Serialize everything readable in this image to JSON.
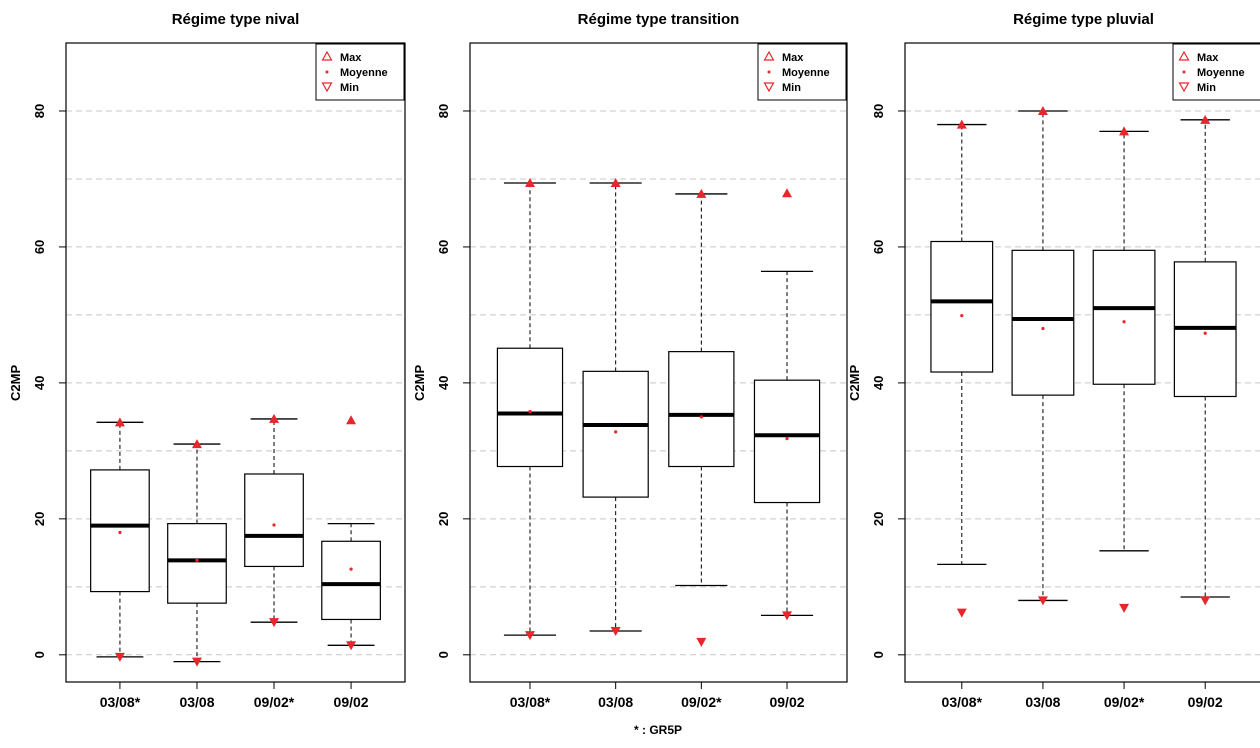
{
  "footnote": "* : GR5P",
  "colors": {
    "marker": "#e8262b",
    "grid": "#c8c8c8",
    "box": "#000000"
  },
  "chart_data": [
    {
      "type": "boxplot",
      "title": "Régime type nival",
      "ylabel": "C2MP",
      "ylim": [
        -4,
        90
      ],
      "yticks": [
        0,
        20,
        40,
        60,
        80
      ],
      "grid": {
        "y": [
          0,
          10,
          20,
          30,
          40,
          50,
          60,
          70,
          80
        ],
        "style": "dashed"
      },
      "legend": {
        "placement": "top-right",
        "entries": [
          "Max",
          "Moyenne",
          "Min"
        ]
      },
      "categories": [
        "03/08*",
        "03/08",
        "09/02*",
        "09/02"
      ],
      "boxes": [
        {
          "whisker_low": -0.3,
          "q1": 9.3,
          "median": 19.0,
          "q3": 27.2,
          "whisker_high": 34.2,
          "max": 34.2,
          "mean": 18.0,
          "min": -0.3
        },
        {
          "whisker_low": -1.0,
          "q1": 7.6,
          "median": 13.9,
          "q3": 19.3,
          "whisker_high": 31.0,
          "max": 31.0,
          "mean": 13.9,
          "min": -1.0
        },
        {
          "whisker_low": 4.8,
          "q1": 13.0,
          "median": 17.5,
          "q3": 26.6,
          "whisker_high": 34.7,
          "max": 34.7,
          "mean": 19.1,
          "min": 4.8
        },
        {
          "whisker_low": 1.4,
          "q1": 5.2,
          "median": 10.4,
          "q3": 16.7,
          "whisker_high": 19.3,
          "max": 34.5,
          "mean": 12.6,
          "min": 1.4
        }
      ]
    },
    {
      "type": "boxplot",
      "title": "Régime type transition",
      "ylabel": "C2MP",
      "ylim": [
        -4,
        90
      ],
      "yticks": [
        0,
        20,
        40,
        60,
        80
      ],
      "grid": {
        "y": [
          0,
          10,
          20,
          30,
          40,
          50,
          60,
          70,
          80
        ],
        "style": "dashed"
      },
      "legend": {
        "placement": "top-right",
        "entries": [
          "Max",
          "Moyenne",
          "Min"
        ]
      },
      "categories": [
        "03/08*",
        "03/08",
        "09/02*",
        "09/02"
      ],
      "boxes": [
        {
          "whisker_low": 2.9,
          "q1": 27.7,
          "median": 35.5,
          "q3": 45.1,
          "whisker_high": 69.4,
          "max": 69.4,
          "mean": 35.8,
          "min": 2.9
        },
        {
          "whisker_low": 3.5,
          "q1": 23.2,
          "median": 33.8,
          "q3": 41.7,
          "whisker_high": 69.4,
          "max": 69.4,
          "mean": 32.8,
          "min": 3.5
        },
        {
          "whisker_low": 10.2,
          "q1": 27.7,
          "median": 35.3,
          "q3": 44.6,
          "whisker_high": 67.8,
          "max": 67.8,
          "mean": 35.0,
          "min": 1.9
        },
        {
          "whisker_low": 5.8,
          "q1": 22.4,
          "median": 32.3,
          "q3": 40.4,
          "whisker_high": 56.4,
          "max": 67.9,
          "mean": 31.8,
          "min": 5.8
        }
      ]
    },
    {
      "type": "boxplot",
      "title": "Régime type pluvial",
      "ylabel": "C2MP",
      "ylim": [
        -4,
        90
      ],
      "yticks": [
        0,
        20,
        40,
        60,
        80
      ],
      "grid": {
        "y": [
          0,
          10,
          20,
          30,
          40,
          50,
          60,
          70,
          80
        ],
        "style": "dashed"
      },
      "legend": {
        "placement": "top-right",
        "entries": [
          "Max",
          "Moyenne",
          "Min"
        ]
      },
      "categories": [
        "03/08*",
        "03/08",
        "09/02*",
        "09/02"
      ],
      "boxes": [
        {
          "whisker_low": 13.3,
          "q1": 41.6,
          "median": 52.0,
          "q3": 60.8,
          "whisker_high": 78.0,
          "max": 78.0,
          "mean": 49.9,
          "min": 6.2
        },
        {
          "whisker_low": 8.0,
          "q1": 38.2,
          "median": 49.4,
          "q3": 59.5,
          "whisker_high": 80.0,
          "max": 80.0,
          "mean": 48.0,
          "min": 8.0
        },
        {
          "whisker_low": 15.3,
          "q1": 39.8,
          "median": 51.0,
          "q3": 59.5,
          "whisker_high": 77.0,
          "max": 77.0,
          "mean": 49.0,
          "min": 6.9
        },
        {
          "whisker_low": 8.5,
          "q1": 38.0,
          "median": 48.1,
          "q3": 57.8,
          "whisker_high": 78.7,
          "max": 78.7,
          "mean": 47.3,
          "min": 8.0
        }
      ]
    }
  ]
}
